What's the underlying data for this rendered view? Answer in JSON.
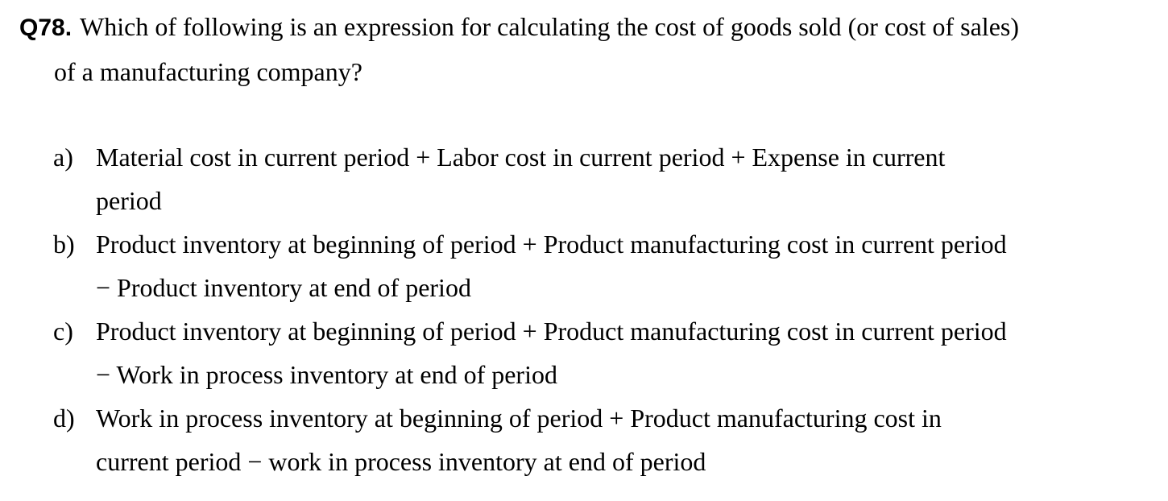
{
  "question": {
    "number": "Q78.",
    "line1": "Which of following is an expression for calculating the cost of goods sold (or cost of sales)",
    "line2": "of a manufacturing company?"
  },
  "options": [
    {
      "letter": "a)",
      "line1": "Material cost in current period + Labor cost in current period + Expense in current",
      "line2": "period"
    },
    {
      "letter": "b)",
      "line1": "Product inventory at beginning of period + Product manufacturing cost in current period",
      "line2": "− Product inventory at end of period"
    },
    {
      "letter": "c)",
      "line1": "Product inventory at beginning of period + Product manufacturing cost in current period",
      "line2": "− Work in process inventory at end of period"
    },
    {
      "letter": "d)",
      "line1": "Work in process inventory at beginning of period + Product manufacturing cost in",
      "line2": "current period − work in process inventory at end of period"
    }
  ]
}
